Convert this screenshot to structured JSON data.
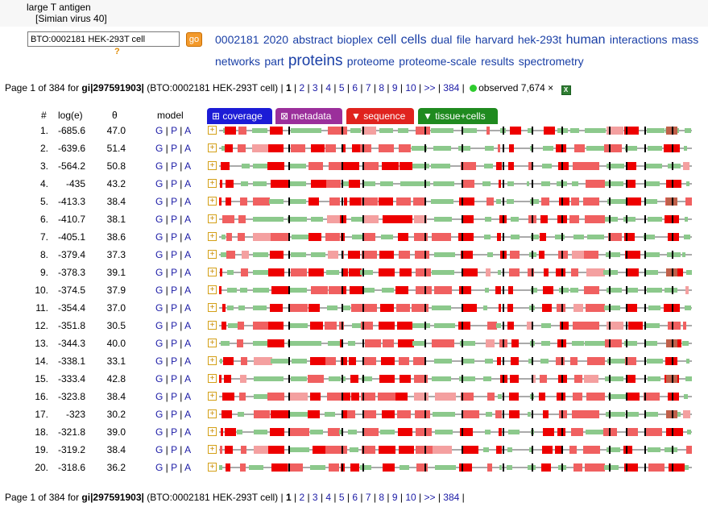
{
  "protein": {
    "name": "large T antigen",
    "organism": "[Simian virus 40]"
  },
  "search": {
    "value": "BTO:0002181 HEK-293T cell",
    "go_label": "go",
    "help_label": "?"
  },
  "tag_cloud": [
    {
      "text": "0002181",
      "size": 14
    },
    {
      "text": "2020",
      "size": 14
    },
    {
      "text": "abstract",
      "size": 14
    },
    {
      "text": "bioplex",
      "size": 14
    },
    {
      "text": "cell",
      "size": 16
    },
    {
      "text": "cells",
      "size": 16
    },
    {
      "text": "dual",
      "size": 14
    },
    {
      "text": "file",
      "size": 14
    },
    {
      "text": "harvard",
      "size": 14
    },
    {
      "text": "hek-293t",
      "size": 14
    },
    {
      "text": "human",
      "size": 16
    },
    {
      "text": "interactions",
      "size": 14
    },
    {
      "text": "mass",
      "size": 14
    },
    {
      "text": "networks",
      "size": 14
    },
    {
      "text": "part",
      "size": 14
    },
    {
      "text": "proteins",
      "size": 19
    },
    {
      "text": "proteome",
      "size": 14
    },
    {
      "text": "proteome-scale",
      "size": 14
    },
    {
      "text": "results",
      "size": 14
    },
    {
      "text": "spectrometry",
      "size": 14
    }
  ],
  "pager": {
    "prefix": "Page 1 of 384 for ",
    "gi": "gi|297591903|",
    "context": " (BTO:0002181 HEK-293T cell) | ",
    "current": "1",
    "pages": [
      "2",
      "3",
      "4",
      "5",
      "6",
      "7",
      "8",
      "9",
      "10",
      ">>",
      "384"
    ],
    "observed": "observed 7,674 ×",
    "excel_label": "X"
  },
  "columns": {
    "num": "#",
    "loge": "log(e)",
    "theta": "θ",
    "model": "model"
  },
  "tabs": {
    "coverage": "⊞ coverage",
    "metadata": "⊠ metadata",
    "sequence": "▼ sequence",
    "tissue": "▼ tissue+cells"
  },
  "model_links": [
    "G",
    "P",
    "A"
  ],
  "rows": [
    {
      "n": "1.",
      "loge": "-685.6",
      "theta": "47.0"
    },
    {
      "n": "2.",
      "loge": "-639.6",
      "theta": "51.4"
    },
    {
      "n": "3.",
      "loge": "-564.2",
      "theta": "50.8"
    },
    {
      "n": "4.",
      "loge": "-435",
      "theta": "43.2"
    },
    {
      "n": "5.",
      "loge": "-413.3",
      "theta": "38.4"
    },
    {
      "n": "6.",
      "loge": "-410.7",
      "theta": "38.1"
    },
    {
      "n": "7.",
      "loge": "-405.1",
      "theta": "38.6"
    },
    {
      "n": "8.",
      "loge": "-379.4",
      "theta": "37.3"
    },
    {
      "n": "9.",
      "loge": "-378.3",
      "theta": "39.1"
    },
    {
      "n": "10.",
      "loge": "-374.5",
      "theta": "37.9"
    },
    {
      "n": "11.",
      "loge": "-354.4",
      "theta": "37.0"
    },
    {
      "n": "12.",
      "loge": "-351.8",
      "theta": "30.5"
    },
    {
      "n": "13.",
      "loge": "-344.3",
      "theta": "40.0"
    },
    {
      "n": "14.",
      "loge": "-338.1",
      "theta": "33.1"
    },
    {
      "n": "15.",
      "loge": "-333.4",
      "theta": "42.8"
    },
    {
      "n": "16.",
      "loge": "-323.8",
      "theta": "38.4"
    },
    {
      "n": "17.",
      "loge": "-323",
      "theta": "30.2"
    },
    {
      "n": "18.",
      "loge": "-321.8",
      "theta": "39.0"
    },
    {
      "n": "19.",
      "loge": "-319.2",
      "theta": "38.4"
    },
    {
      "n": "20.",
      "loge": "-318.6",
      "theta": "36.2"
    }
  ],
  "colors": {
    "strong": "#ee0000",
    "medium": "#f06060",
    "weak": "#f4a0a0",
    "green": "#8cc98c",
    "brown": "#c0604a",
    "line": "#555555",
    "tick": "#000000"
  }
}
